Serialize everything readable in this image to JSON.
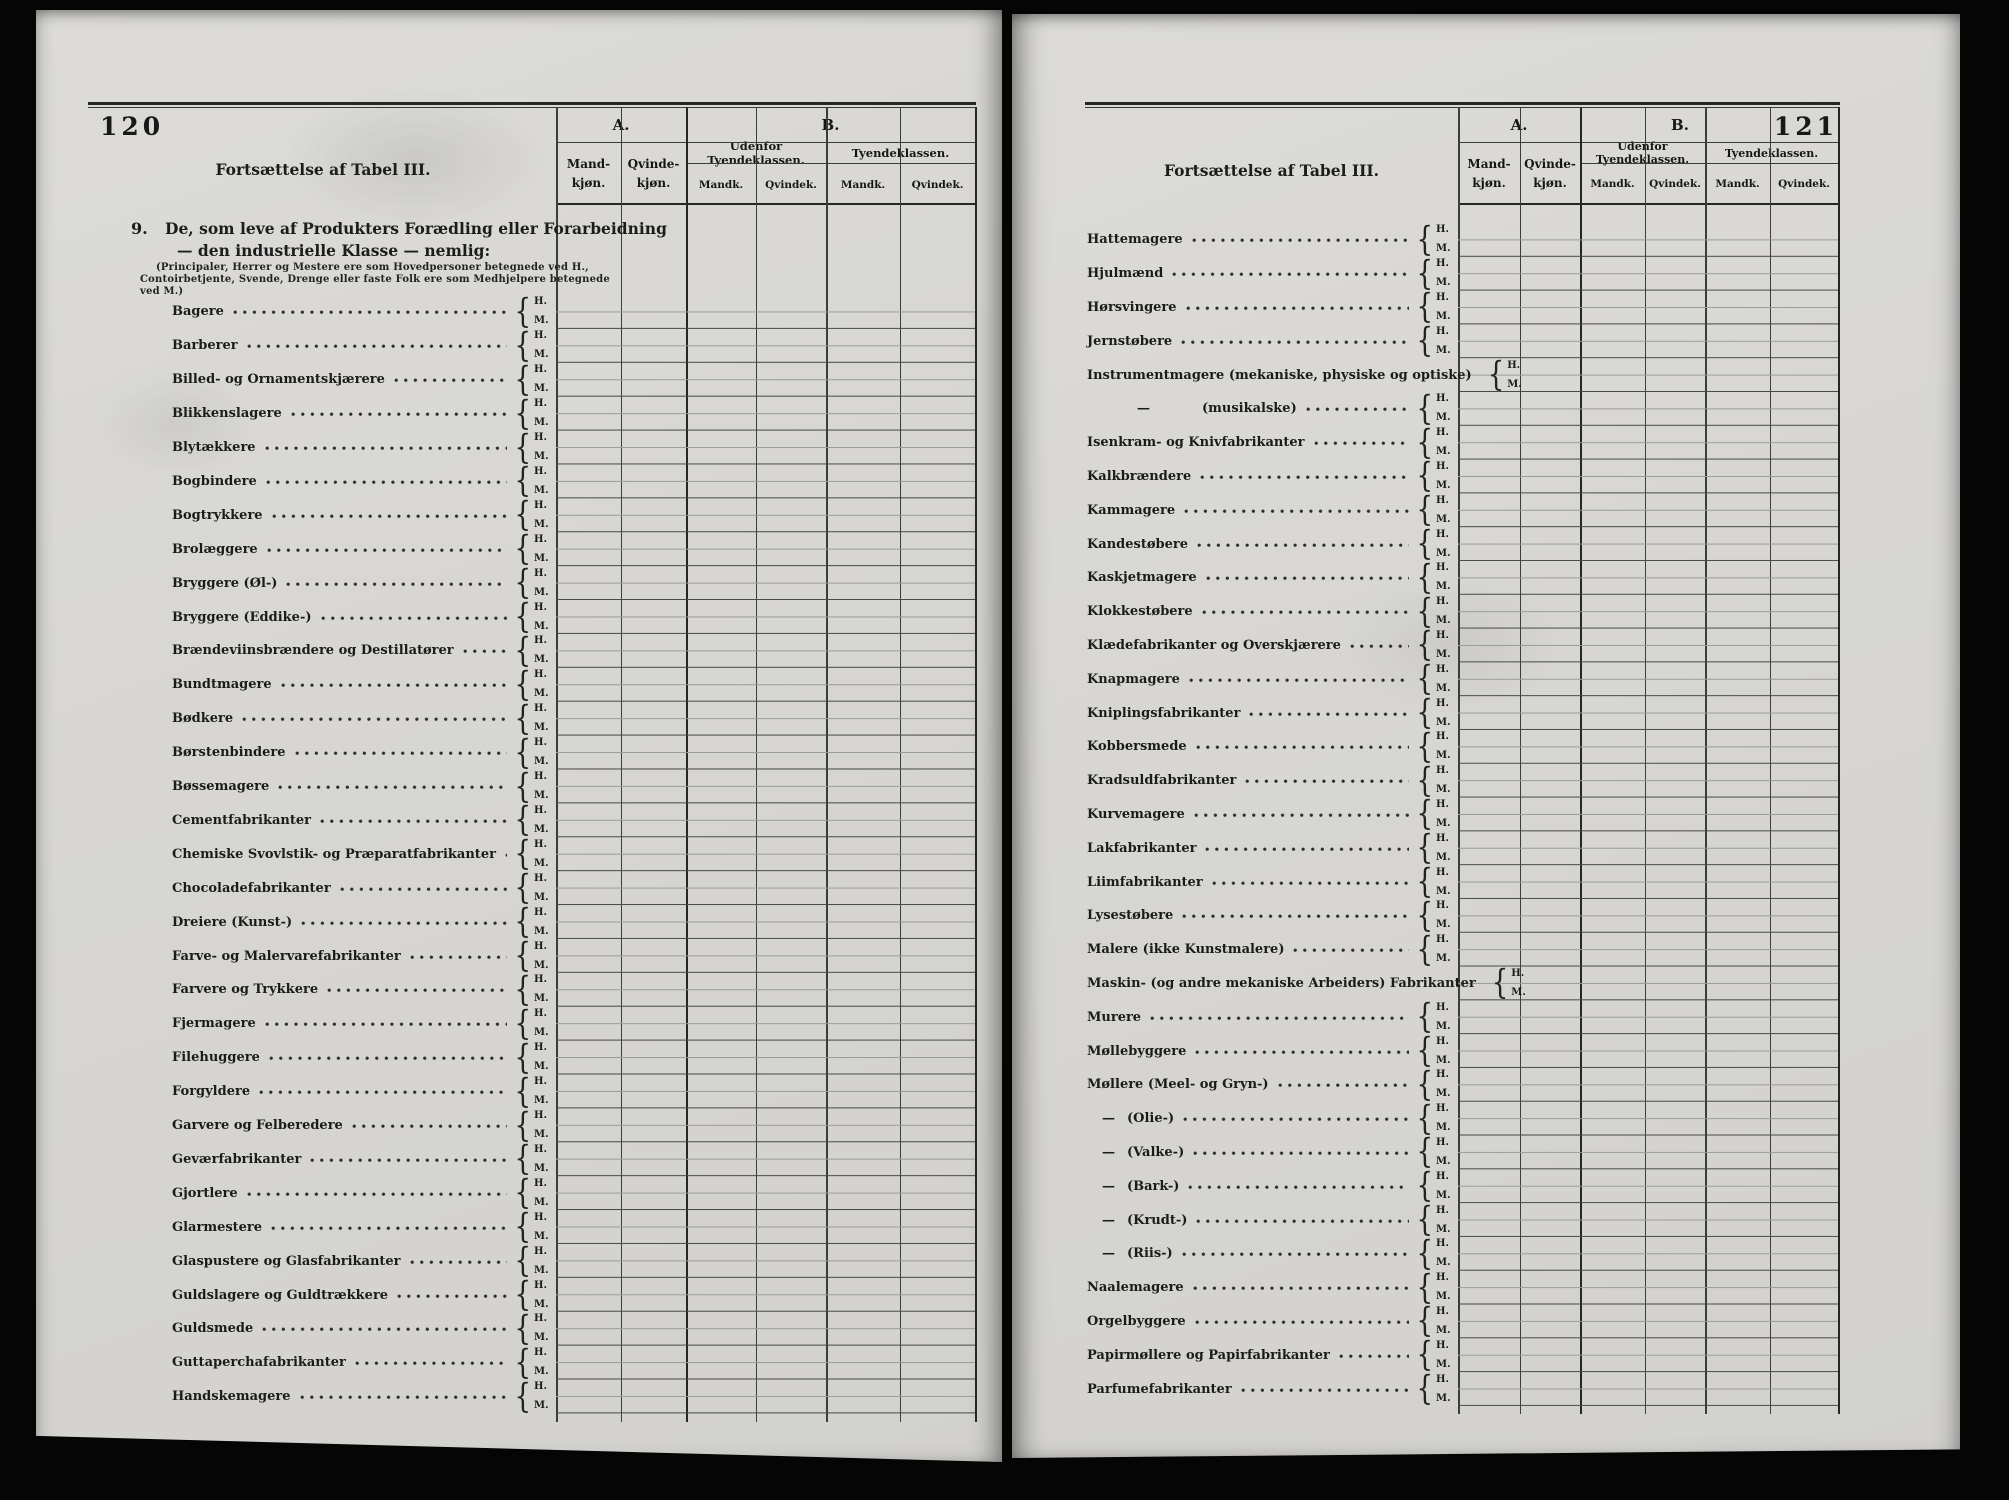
{
  "shared": {
    "title": "Fortsættelse af Tabel III.",
    "col_a": "A.",
    "col_b": "B.",
    "mand_kjon": [
      "Mand-",
      "kjøn."
    ],
    "qvinde_kjon": [
      "Qvinde-",
      "kjøn."
    ],
    "udenfor_tyendeklassen": "Udenfor Tyendeklassen.",
    "tyendeklassen": "Tyendeklassen.",
    "mandk": "Mandk.",
    "qvindek": "Qvindek.",
    "marker_h": "H.",
    "marker_m": "M.",
    "brace": "{",
    "dash": "—"
  },
  "left_page": {
    "page_number": "120",
    "section": {
      "number": "9.",
      "heading_line1": "De, som leve af Produkters Forædling eller Forarbeidning",
      "heading_line2": "— den industrielle Klasse — nemlig:",
      "note_line1": "(Principaler, Herrer og Mestere ere som Hovedpersoner betegnede ved H.,",
      "note_line2": "Contoirbetjente, Svende, Drenge eller faste Folk ere som Medhjelpere betegnede",
      "note_line3": "ved M.)"
    },
    "rows": [
      {
        "label": "Bagere"
      },
      {
        "label": "Barberer"
      },
      {
        "label": "Billed- og Ornamentskjærere"
      },
      {
        "label": "Blikkenslagere"
      },
      {
        "label": "Blytækkere"
      },
      {
        "label": "Bogbindere"
      },
      {
        "label": "Bogtrykkere"
      },
      {
        "label": "Brolæggere"
      },
      {
        "label": "Bryggere (Øl-)"
      },
      {
        "label": "Bryggere (Eddike-)"
      },
      {
        "label": "Brændeviinsbrændere og Destillatører"
      },
      {
        "label": "Bundtmagere"
      },
      {
        "label": "Bødkere"
      },
      {
        "label": "Børstenbindere"
      },
      {
        "label": "Bøssemagere"
      },
      {
        "label": "Cementfabrikanter"
      },
      {
        "label": "Chemiske Svovlstik- og Præparatfabrikanter"
      },
      {
        "label": "Chocoladefabrikanter"
      },
      {
        "label": "Dreiere (Kunst-)"
      },
      {
        "label": "Farve- og Malervarefabrikanter"
      },
      {
        "label": "Farvere og Trykkere"
      },
      {
        "label": "Fjermagere"
      },
      {
        "label": "Filehuggere"
      },
      {
        "label": "Forgyldere"
      },
      {
        "label": "Garvere og Felberedere"
      },
      {
        "label": "Geværfabrikanter"
      },
      {
        "label": "Gjortlere"
      },
      {
        "label": "Glarmestere"
      },
      {
        "label": "Glaspustere og Glasfabrikanter"
      },
      {
        "label": "Guldslagere og Guldtrækkere"
      },
      {
        "label": "Guldsmede"
      },
      {
        "label": "Guttaperchafabrikanter"
      },
      {
        "label": "Handskemagere"
      }
    ]
  },
  "right_page": {
    "page_number": "121",
    "rows": [
      {
        "label": "Hattemagere"
      },
      {
        "label": "Hjulmænd"
      },
      {
        "label": "Hørsvingere"
      },
      {
        "label": "Jernstøbere"
      },
      {
        "label": "Instrumentmagere (mekaniske, physiske og optiske)"
      },
      {
        "label": "(musikalske)",
        "sub": 2
      },
      {
        "label": "Isenkram- og Knivfabrikanter"
      },
      {
        "label": "Kalkbrændere"
      },
      {
        "label": "Kammagere"
      },
      {
        "label": "Kandestøbere"
      },
      {
        "label": "Kaskjetmagere"
      },
      {
        "label": "Klokkestøbere"
      },
      {
        "label": "Klædefabrikanter og Overskjærere"
      },
      {
        "label": "Knapmagere"
      },
      {
        "label": "Kniplingsfabrikanter"
      },
      {
        "label": "Kobbersmede"
      },
      {
        "label": "Kradsuldfabrikanter"
      },
      {
        "label": "Kurvemagere"
      },
      {
        "label": "Lakfabrikanter"
      },
      {
        "label": "Liimfabrikanter"
      },
      {
        "label": "Lysestøbere"
      },
      {
        "label": "Malere (ikke Kunstmalere)"
      },
      {
        "label": "Maskin- (og andre mekaniske Arbeiders) Fabrikanter"
      },
      {
        "label": "Murere"
      },
      {
        "label": "Møllebyggere"
      },
      {
        "label": "Møllere (Meel- og Gryn-)"
      },
      {
        "label": "(Olie-)",
        "sub": 1
      },
      {
        "label": "(Valke-)",
        "sub": 1
      },
      {
        "label": "(Bark-)",
        "sub": 1
      },
      {
        "label": "(Krudt-)",
        "sub": 1
      },
      {
        "label": "(Riis-)",
        "sub": 1
      },
      {
        "label": "Naalemagere"
      },
      {
        "label": "Orgelbyggere"
      },
      {
        "label": "Papirmøllere og Papirfabrikanter"
      },
      {
        "label": "Parfumefabrikanter"
      }
    ]
  },
  "colors": {
    "paper": "#d7d6d2",
    "ink": "#1c1c1c",
    "background": "#050505"
  }
}
